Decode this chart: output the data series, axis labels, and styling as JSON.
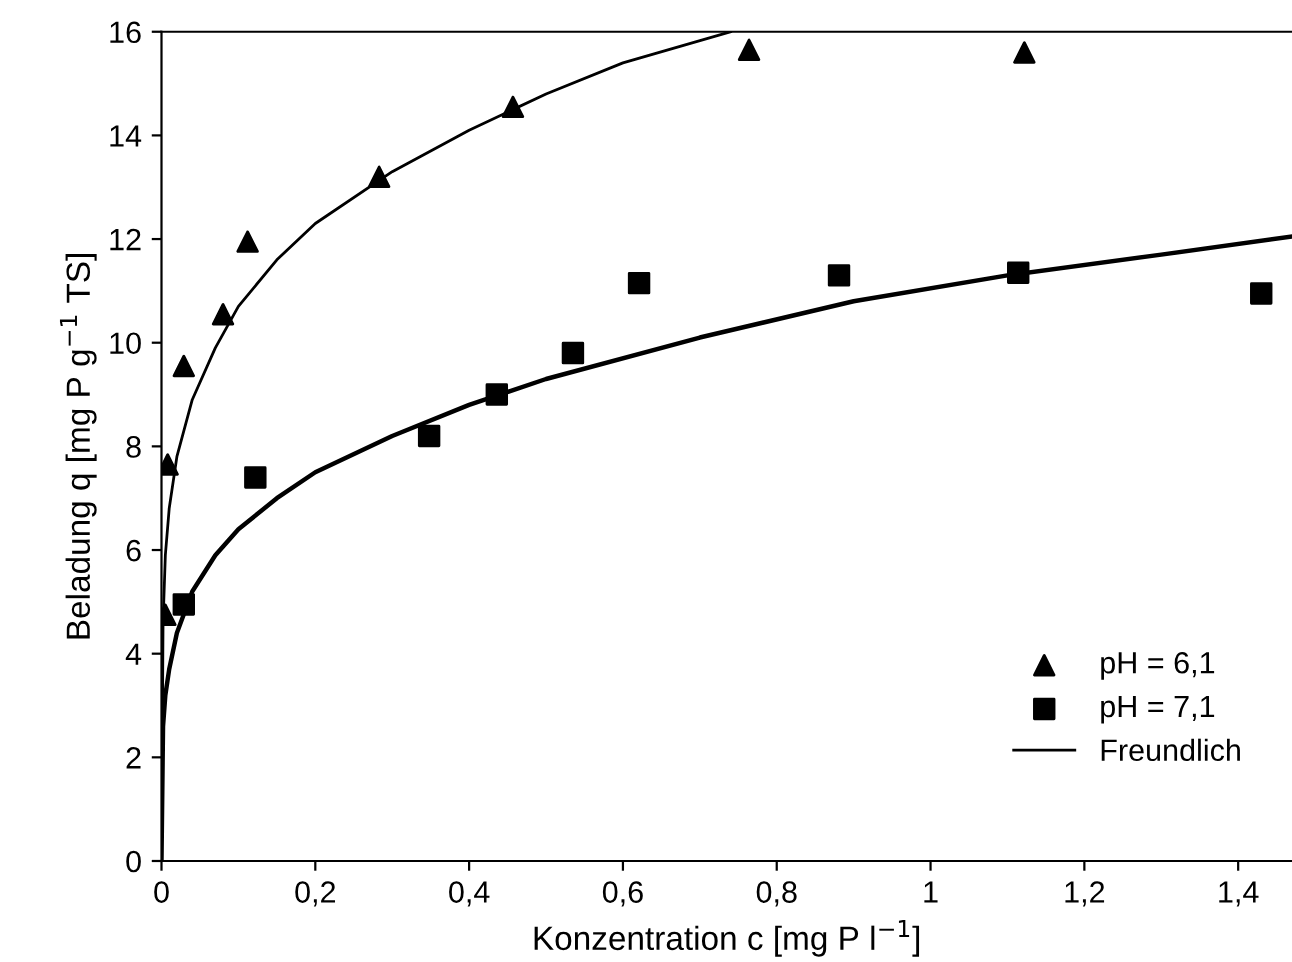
{
  "chart_data": {
    "type": "scatter",
    "xlabel": "Konzentration c [mg P l$^{−1}$]",
    "ylabel": "Beladung q [mg P g$^{−1}$ TS]",
    "xlim": [
      0,
      1.47
    ],
    "ylim": [
      0,
      16
    ],
    "xticks": [
      0,
      {
        "value": 0.2,
        "label": "0,2"
      },
      {
        "value": 0.4,
        "label": "0,4"
      },
      {
        "value": 0.6,
        "label": "0,6"
      },
      {
        "value": 0.8,
        "label": "0,8"
      },
      1,
      {
        "value": 1.2,
        "label": "1,2"
      },
      {
        "value": 1.4,
        "label": "1,4"
      }
    ],
    "yticks": [
      0,
      2,
      4,
      6,
      8,
      10,
      12,
      14,
      16
    ],
    "grid": false,
    "legend": "bottom right",
    "series": [
      {
        "name": "pH = 6,1",
        "marker": "triangle",
        "color": "#000000",
        "x": [
          0.005,
          0.008,
          0.029,
          0.08,
          0.112,
          0.283,
          0.457,
          0.764,
          1.122
        ],
        "values": [
          4.75,
          7.65,
          9.55,
          10.55,
          11.95,
          13.2,
          14.55,
          15.65,
          15.6
        ]
      },
      {
        "name": "pH = 7,1",
        "marker": "square",
        "color": "#000000",
        "x": [
          0.029,
          0.122,
          0.348,
          0.436,
          0.535,
          0.621,
          0.881,
          1.114,
          1.43
        ],
        "values": [
          4.95,
          7.4,
          8.2,
          9.0,
          9.8,
          11.15,
          11.3,
          11.35,
          10.95
        ]
      },
      {
        "name": "Freundlich",
        "type": "line",
        "marker": "none",
        "line_style": "solid",
        "color": "#000000",
        "x": [
          0,
          0.002,
          0.005,
          0.01,
          0.02,
          0.04,
          0.07,
          0.1,
          0.15,
          0.2,
          0.3,
          0.4,
          0.5,
          0.6,
          0.74
        ],
        "values": [
          0,
          4.6,
          5.9,
          6.8,
          7.8,
          8.9,
          9.9,
          10.7,
          11.6,
          12.3,
          13.3,
          14.1,
          14.8,
          15.4,
          16.0
        ]
      },
      {
        "type": "line",
        "marker": "none",
        "line_style": "solid",
        "color": "#000000",
        "x": [
          0,
          0.002,
          0.005,
          0.01,
          0.02,
          0.04,
          0.07,
          0.1,
          0.15,
          0.2,
          0.3,
          0.4,
          0.5,
          0.7,
          0.9,
          1.1,
          1.3,
          1.47
        ],
        "values": [
          0,
          2.6,
          3.2,
          3.7,
          4.4,
          5.2,
          5.9,
          6.4,
          7.0,
          7.5,
          8.2,
          8.8,
          9.3,
          10.1,
          10.8,
          11.3,
          11.7,
          12.05
        ]
      }
    ]
  }
}
